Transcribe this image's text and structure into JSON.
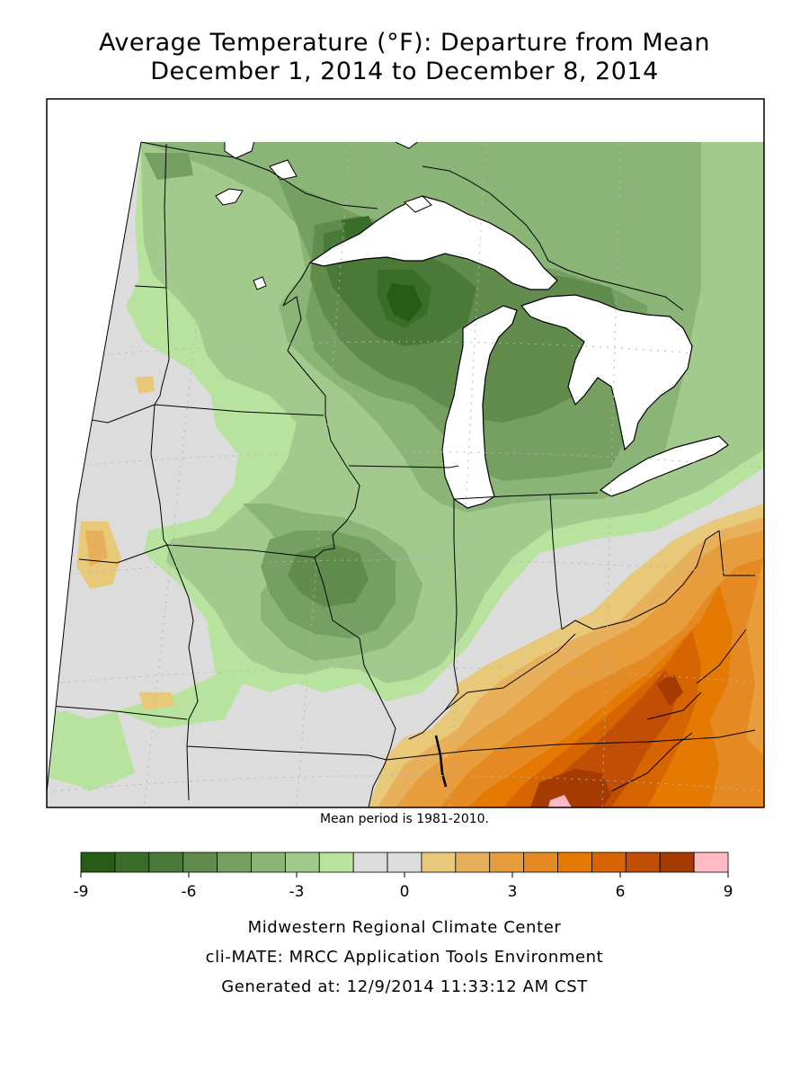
{
  "title_line1": "Average Temperature (°F): Departure from Mean",
  "title_line2": "December 1, 2014 to December 8, 2014",
  "mean_period_note": "Mean period is 1981-2010.",
  "legend": {
    "colors": [
      "#275c17",
      "#3a6d28",
      "#4b7a38",
      "#618c4c",
      "#76a062",
      "#8bb477",
      "#a2ca8c",
      "#b7e39e",
      "#dcdcdc",
      "#dcdcdc",
      "#e8c97a",
      "#e8b05a",
      "#e79d3c",
      "#e58a22",
      "#e57a02",
      "#d66401",
      "#c14e05",
      "#a63b02",
      "#ffbac4"
    ],
    "ticks": [
      "-9",
      "-6",
      "-3",
      "0",
      "3",
      "6",
      "9"
    ]
  },
  "footer": {
    "line1": "Midwestern Regional Climate Center",
    "line2": "cli-MATE: MRCC Application Tools Environment",
    "line3": "Generated at: 12/9/2014 11:33:12 AM CST"
  },
  "map_colors": {
    "neutral": "#dcdcdc",
    "water": "#ffffff"
  }
}
